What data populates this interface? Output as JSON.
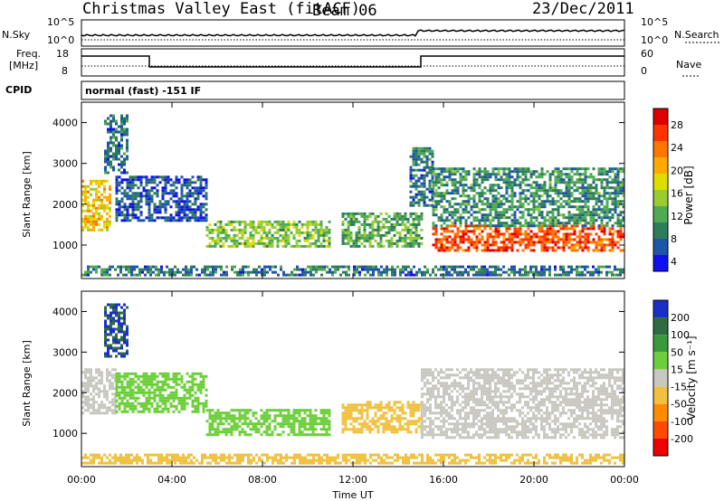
{
  "header": {
    "station": "Christmas Valley East (fitACF)",
    "beam": "Beam 06",
    "date": "23/Dec/2011"
  },
  "panels": {
    "noise_left_label": "N.Sky",
    "noise_right_label": "N.Search",
    "noise_left_ticks": [
      "10^5",
      "10^0"
    ],
    "noise_right_ticks": [
      "10^5",
      "10^0"
    ],
    "freq_label_1": "Freq.",
    "freq_label_2": "[MHz]",
    "freq_ticks": [
      "18",
      "8"
    ],
    "nave_label": "Nave",
    "nave_ticks": [
      "60",
      "0"
    ],
    "cpid_label": "CPID",
    "cpid_text": "normal (fast) -151 IF"
  },
  "chart_data": [
    {
      "type": "heatmap",
      "name": "power",
      "ylabel": "Slant Range [km]",
      "ylim": [
        180,
        4500
      ],
      "yticks": [
        1000,
        2000,
        3000,
        4000
      ],
      "xlim": [
        0,
        24
      ],
      "xticks": [
        "00:00",
        "04:00",
        "08:00",
        "12:00",
        "16:00",
        "20:00",
        "00:00"
      ],
      "colorbar": {
        "label": "Power [dB]",
        "ticks": [
          "28",
          "24",
          "20",
          "16",
          "12",
          "8",
          "4"
        ],
        "colors": [
          "#dd0000",
          "#ff3300",
          "#ff7700",
          "#ffaa00",
          "#dddd00",
          "#99cc33",
          "#4faa55",
          "#2e7d5a",
          "#1f55a8",
          "#1010ee"
        ]
      },
      "regions": [
        {
          "t0": 0.0,
          "t1": 1.3,
          "r0": 1400,
          "r1": 2600,
          "level": 20
        },
        {
          "t0": 1.0,
          "t1": 2.0,
          "r0": 2800,
          "r1": 4200,
          "level": 8
        },
        {
          "t0": 1.5,
          "t1": 5.5,
          "r0": 1600,
          "r1": 2700,
          "level": 6
        },
        {
          "t0": 5.5,
          "t1": 11.0,
          "r0": 950,
          "r1": 1600,
          "level": 14
        },
        {
          "t0": 11.5,
          "t1": 15.0,
          "r0": 1000,
          "r1": 1800,
          "level": 12
        },
        {
          "t0": 14.5,
          "t1": 15.5,
          "r0": 2000,
          "r1": 3400,
          "level": 8
        },
        {
          "t0": 15.5,
          "t1": 24.0,
          "r0": 850,
          "r1": 1500,
          "level": 26
        },
        {
          "t0": 15.5,
          "t1": 24.0,
          "r0": 1500,
          "r1": 2900,
          "level": 10
        },
        {
          "t0": 0.0,
          "t1": 24.0,
          "r0": 250,
          "r1": 500,
          "level": 8
        }
      ]
    },
    {
      "type": "heatmap",
      "name": "velocity",
      "ylabel": "Slant Range [km]",
      "ylim": [
        180,
        4500
      ],
      "yticks": [
        1000,
        2000,
        3000,
        4000
      ],
      "xlim": [
        0,
        24
      ],
      "xticks": [
        "00:00",
        "04:00",
        "08:00",
        "12:00",
        "16:00",
        "20:00",
        "00:00"
      ],
      "xlabel": "Time UT",
      "colorbar": {
        "label": "Velocity [m s⁻¹]",
        "ticks": [
          "200",
          "100",
          "50",
          "15",
          "-15",
          "-50",
          "-100",
          "-200"
        ],
        "colors": [
          "#1a2fc8",
          "#2e6b40",
          "#3a9a3a",
          "#6ccf3a",
          "#c8c8c0",
          "#f0c040",
          "#ff8c00",
          "#ff4a00",
          "#ee0000"
        ]
      },
      "regions": [
        {
          "t0": 0.0,
          "t1": 1.5,
          "r0": 1500,
          "r1": 2600,
          "level": 0
        },
        {
          "t0": 1.0,
          "t1": 2.0,
          "r0": 2900,
          "r1": 4200,
          "level": 150
        },
        {
          "t0": 1.5,
          "t1": 5.5,
          "r0": 1500,
          "r1": 2500,
          "level": 30
        },
        {
          "t0": 5.5,
          "t1": 11.0,
          "r0": 950,
          "r1": 1600,
          "level": 30
        },
        {
          "t0": 11.5,
          "t1": 15.0,
          "r0": 1000,
          "r1": 1800,
          "level": -40
        },
        {
          "t0": 15.0,
          "t1": 24.0,
          "r0": 900,
          "r1": 2600,
          "level": 0
        },
        {
          "t0": 0.0,
          "t1": 24.0,
          "r0": 250,
          "r1": 500,
          "level": -30
        }
      ]
    }
  ]
}
